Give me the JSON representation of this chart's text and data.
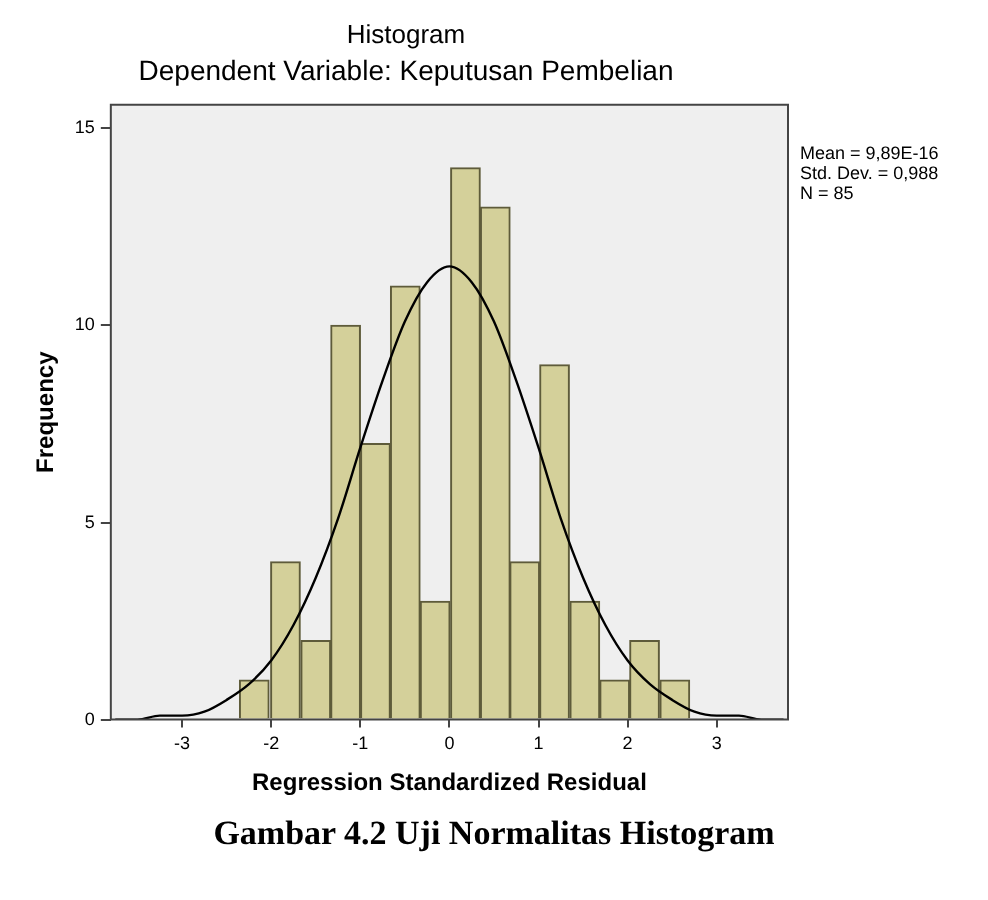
{
  "chart_data": {
    "type": "histogram",
    "title": "Histogram",
    "subtitle": "Dependent Variable: Keputusan Pembelian",
    "xlabel": "Regression Standardized Residual",
    "ylabel": "Frequency",
    "bins": [
      -2.37,
      -2.01,
      -1.67,
      -1.33,
      -1.0,
      -0.66,
      -0.33,
      0.01,
      0.35,
      0.68,
      1.01,
      1.35,
      1.69,
      2.02,
      2.36,
      2.7
    ],
    "values": [
      1,
      4,
      2,
      10,
      7,
      11,
      3,
      14,
      13,
      4,
      9,
      3,
      1,
      2,
      1
    ],
    "color": "#d4d09a",
    "series": [
      {
        "type": "line",
        "color": "#000000",
        "x": [
          -3.75,
          -3.5,
          -3.25,
          -3,
          -2.75,
          -2.5,
          -2.25,
          -2,
          -1.75,
          -1.5,
          -1.25,
          -1,
          -0.75,
          -0.5,
          -0.25,
          0,
          0.25,
          0.5,
          0.75,
          1,
          1.25,
          1.5,
          1.75,
          2,
          2.25,
          2.5,
          2.75,
          3,
          3.25,
          3.5,
          3.75
        ],
        "values": [
          0.0,
          0.0,
          0.1,
          0.1,
          0.2,
          0.5,
          0.9,
          1.5,
          2.4,
          3.6,
          5.1,
          6.9,
          8.6,
          10.1,
          11.1,
          11.5,
          11.1,
          10.1,
          8.6,
          6.9,
          5.1,
          3.6,
          2.4,
          1.5,
          0.9,
          0.5,
          0.2,
          0.1,
          0.1,
          0.0,
          0.0
        ]
      }
    ],
    "xlim": [
      -3.8,
      3.8
    ],
    "xticks": [
      -3,
      -2,
      -1,
      0,
      1,
      2,
      3
    ],
    "ylim": [
      0,
      15.6
    ],
    "yticks": [
      0,
      5,
      10,
      15
    ],
    "annotations": [
      "Mean = 9,89E-16\nStd. Dev. = 0,988\nN = 85",
      "Gambar 4.2 Uji Normalitas Histogram"
    ]
  }
}
